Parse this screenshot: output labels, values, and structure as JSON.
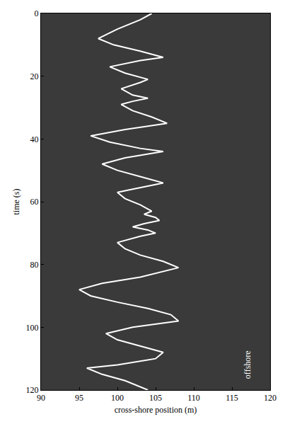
{
  "chart_data": {
    "type": "line",
    "x_label": "cross-shore position (m)",
    "y_label": "time (s)",
    "x": [
      104.5,
      103,
      100,
      97.5,
      99.5,
      103,
      106,
      103,
      99,
      101,
      104,
      103,
      100.5,
      102,
      104,
      102,
      100.5,
      102,
      104.5,
      106.5,
      101,
      96.5,
      99,
      103,
      106,
      101,
      98,
      100,
      103,
      106,
      102,
      100,
      101,
      103,
      104.5,
      103.5,
      105,
      105.5,
      103.5,
      102,
      104,
      105,
      103,
      100,
      101,
      103,
      106,
      108,
      103,
      98,
      95,
      96.5,
      100,
      104,
      107,
      108,
      102,
      98.5,
      100,
      103,
      106,
      105,
      100,
      96,
      98,
      101,
      103,
      104
    ],
    "y": [
      0,
      2,
      5,
      8,
      10,
      12,
      14,
      15,
      17,
      19,
      21,
      22,
      24,
      26,
      27,
      28,
      29,
      31,
      33,
      35,
      37,
      39,
      41,
      43,
      44,
      46,
      48,
      50,
      52,
      54,
      56,
      57,
      59,
      61,
      63,
      64,
      65,
      66,
      67,
      68,
      69,
      70,
      71,
      73,
      75,
      77,
      79,
      81,
      84,
      86,
      88,
      90,
      92,
      94,
      96,
      98,
      100,
      102,
      104,
      106,
      108,
      110,
      112,
      113,
      115,
      117,
      119,
      120
    ],
    "color": "#ffffff",
    "xlim": [
      90,
      120
    ],
    "xticks": [
      90,
      95,
      100,
      105,
      110,
      115,
      120
    ],
    "ylim": [
      0,
      120
    ],
    "yticks": [
      0,
      20,
      40,
      60,
      80,
      100,
      120
    ],
    "grid": false,
    "annotations": [
      {
        "text": "offshore",
        "x": 117,
        "y": 112
      }
    ]
  }
}
